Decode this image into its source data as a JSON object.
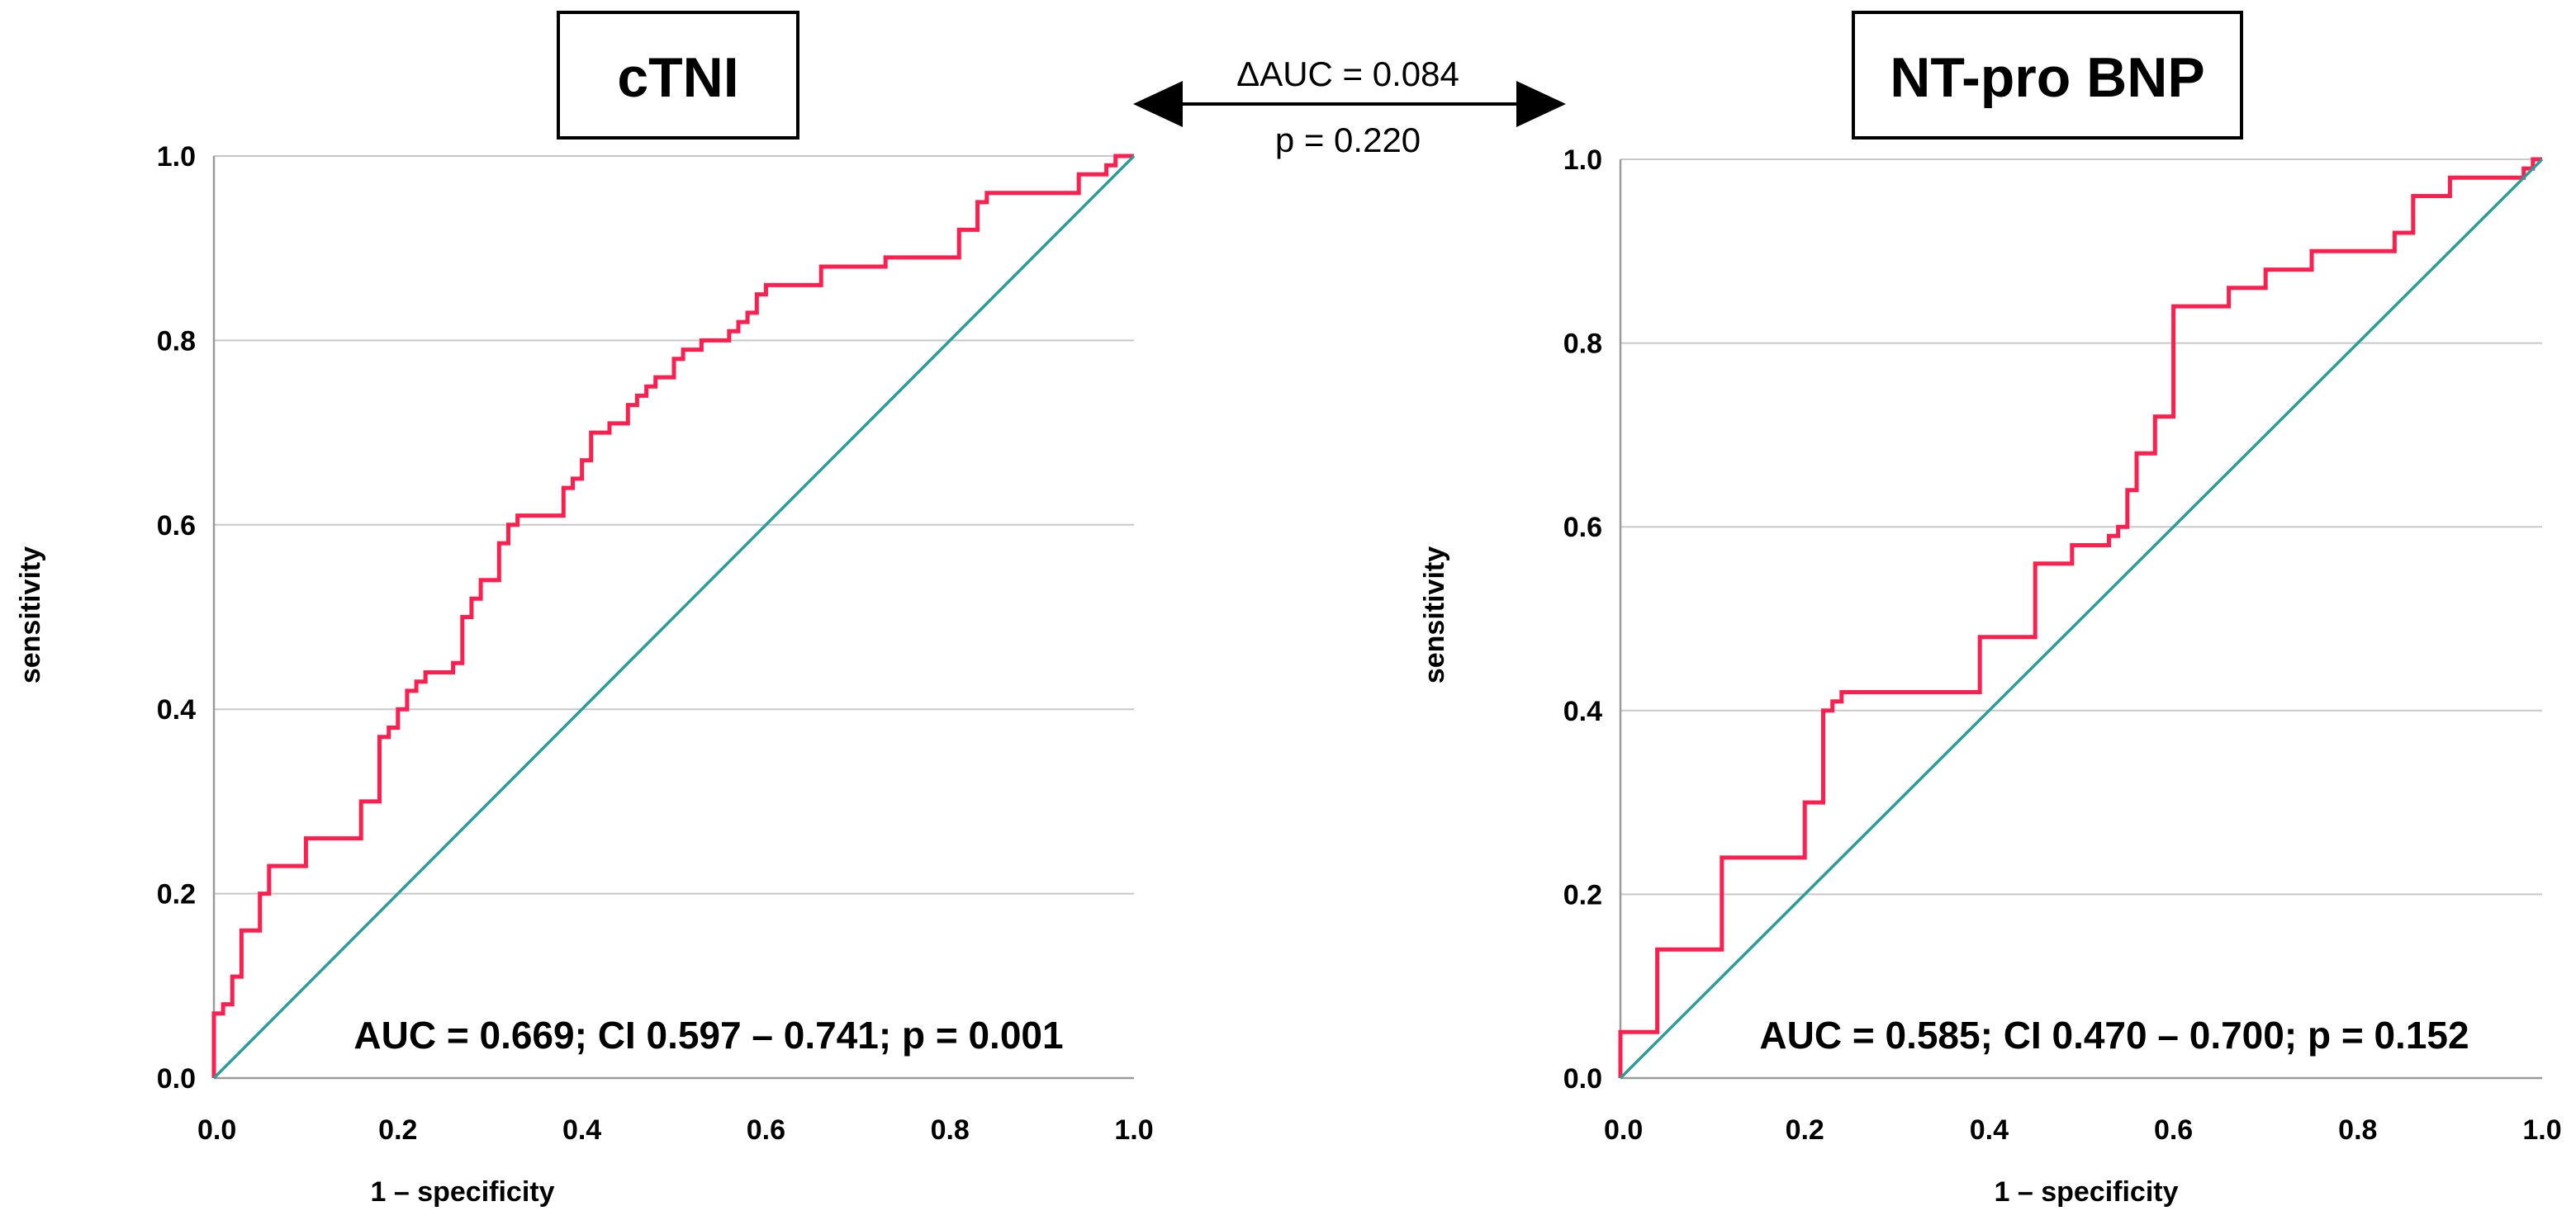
{
  "colors": {
    "roc": "#ff1f4f",
    "reference": "#2a9d9a",
    "grid": "#c8c8c8",
    "text": "#000000"
  },
  "comparison": {
    "delta_label": "ΔAUC = 0.084",
    "p_label": "p = 0.220"
  },
  "chart_data": [
    {
      "type": "line",
      "title": "cTNI",
      "xlabel": "1 – specificity",
      "ylabel": "sensitivity",
      "xlim": [
        0,
        1
      ],
      "ylim": [
        0,
        1
      ],
      "xticks": [
        "0.0",
        "0.2",
        "0.4",
        "0.6",
        "0.8",
        "1.0"
      ],
      "yticks": [
        "0.0",
        "0.2",
        "0.4",
        "0.6",
        "0.8",
        "1.0"
      ],
      "annotation": "AUC = 0.669; CI 0.597 – 0.741; p = 0.001",
      "grid": true,
      "series": [
        {
          "name": "ROC",
          "points": [
            [
              0,
              0
            ],
            [
              0,
              0.07
            ],
            [
              0.01,
              0.07
            ],
            [
              0.01,
              0.08
            ],
            [
              0.02,
              0.08
            ],
            [
              0.02,
              0.11
            ],
            [
              0.03,
              0.11
            ],
            [
              0.03,
              0.16
            ],
            [
              0.05,
              0.16
            ],
            [
              0.05,
              0.2
            ],
            [
              0.06,
              0.2
            ],
            [
              0.06,
              0.23
            ],
            [
              0.1,
              0.23
            ],
            [
              0.1,
              0.26
            ],
            [
              0.16,
              0.26
            ],
            [
              0.16,
              0.3
            ],
            [
              0.18,
              0.3
            ],
            [
              0.18,
              0.37
            ],
            [
              0.19,
              0.37
            ],
            [
              0.19,
              0.38
            ],
            [
              0.2,
              0.38
            ],
            [
              0.2,
              0.4
            ],
            [
              0.21,
              0.4
            ],
            [
              0.21,
              0.42
            ],
            [
              0.22,
              0.42
            ],
            [
              0.22,
              0.43
            ],
            [
              0.23,
              0.43
            ],
            [
              0.23,
              0.44
            ],
            [
              0.26,
              0.44
            ],
            [
              0.26,
              0.45
            ],
            [
              0.27,
              0.45
            ],
            [
              0.27,
              0.5
            ],
            [
              0.28,
              0.5
            ],
            [
              0.28,
              0.52
            ],
            [
              0.29,
              0.52
            ],
            [
              0.29,
              0.54
            ],
            [
              0.31,
              0.54
            ],
            [
              0.31,
              0.58
            ],
            [
              0.32,
              0.58
            ],
            [
              0.32,
              0.6
            ],
            [
              0.33,
              0.6
            ],
            [
              0.33,
              0.61
            ],
            [
              0.38,
              0.61
            ],
            [
              0.38,
              0.64
            ],
            [
              0.39,
              0.64
            ],
            [
              0.39,
              0.65
            ],
            [
              0.4,
              0.65
            ],
            [
              0.4,
              0.67
            ],
            [
              0.41,
              0.67
            ],
            [
              0.41,
              0.7
            ],
            [
              0.43,
              0.7
            ],
            [
              0.43,
              0.71
            ],
            [
              0.45,
              0.71
            ],
            [
              0.45,
              0.73
            ],
            [
              0.46,
              0.73
            ],
            [
              0.46,
              0.74
            ],
            [
              0.47,
              0.74
            ],
            [
              0.47,
              0.75
            ],
            [
              0.48,
              0.75
            ],
            [
              0.48,
              0.76
            ],
            [
              0.5,
              0.76
            ],
            [
              0.5,
              0.78
            ],
            [
              0.51,
              0.78
            ],
            [
              0.51,
              0.79
            ],
            [
              0.53,
              0.79
            ],
            [
              0.53,
              0.8
            ],
            [
              0.56,
              0.8
            ],
            [
              0.56,
              0.81
            ],
            [
              0.57,
              0.81
            ],
            [
              0.57,
              0.82
            ],
            [
              0.58,
              0.82
            ],
            [
              0.58,
              0.83
            ],
            [
              0.59,
              0.83
            ],
            [
              0.59,
              0.85
            ],
            [
              0.6,
              0.85
            ],
            [
              0.6,
              0.86
            ],
            [
              0.66,
              0.86
            ],
            [
              0.66,
              0.88
            ],
            [
              0.73,
              0.88
            ],
            [
              0.73,
              0.89
            ],
            [
              0.81,
              0.89
            ],
            [
              0.81,
              0.92
            ],
            [
              0.83,
              0.92
            ],
            [
              0.83,
              0.95
            ],
            [
              0.84,
              0.95
            ],
            [
              0.84,
              0.96
            ],
            [
              0.94,
              0.96
            ],
            [
              0.94,
              0.98
            ],
            [
              0.97,
              0.98
            ],
            [
              0.97,
              0.99
            ],
            [
              0.98,
              0.99
            ],
            [
              0.98,
              1.0
            ],
            [
              1.0,
              1.0
            ]
          ]
        },
        {
          "name": "Reference",
          "points": [
            [
              0,
              0
            ],
            [
              1,
              1
            ]
          ]
        }
      ]
    },
    {
      "type": "line",
      "title": "NT-pro BNP",
      "xlabel": "1 – specificity",
      "ylabel": "sensitivity",
      "xlim": [
        0,
        1
      ],
      "ylim": [
        0,
        1
      ],
      "xticks": [
        "0.0",
        "0.2",
        "0.4",
        "0.6",
        "0.8",
        "1.0"
      ],
      "yticks": [
        "0.0",
        "0.2",
        "0.4",
        "0.6",
        "0.8",
        "1.0"
      ],
      "annotation": "AUC = 0.585; CI 0.470 – 0.700; p = 0.152",
      "grid": true,
      "series": [
        {
          "name": "ROC",
          "points": [
            [
              0,
              0
            ],
            [
              0,
              0.05
            ],
            [
              0.04,
              0.05
            ],
            [
              0.04,
              0.14
            ],
            [
              0.11,
              0.14
            ],
            [
              0.11,
              0.24
            ],
            [
              0.2,
              0.24
            ],
            [
              0.2,
              0.3
            ],
            [
              0.22,
              0.3
            ],
            [
              0.22,
              0.4
            ],
            [
              0.23,
              0.4
            ],
            [
              0.23,
              0.41
            ],
            [
              0.24,
              0.41
            ],
            [
              0.24,
              0.42
            ],
            [
              0.39,
              0.42
            ],
            [
              0.39,
              0.48
            ],
            [
              0.45,
              0.48
            ],
            [
              0.45,
              0.56
            ],
            [
              0.49,
              0.56
            ],
            [
              0.49,
              0.58
            ],
            [
              0.53,
              0.58
            ],
            [
              0.53,
              0.59
            ],
            [
              0.54,
              0.59
            ],
            [
              0.54,
              0.6
            ],
            [
              0.55,
              0.6
            ],
            [
              0.55,
              0.64
            ],
            [
              0.56,
              0.64
            ],
            [
              0.56,
              0.68
            ],
            [
              0.58,
              0.68
            ],
            [
              0.58,
              0.72
            ],
            [
              0.6,
              0.72
            ],
            [
              0.6,
              0.84
            ],
            [
              0.66,
              0.84
            ],
            [
              0.66,
              0.86
            ],
            [
              0.7,
              0.86
            ],
            [
              0.7,
              0.88
            ],
            [
              0.75,
              0.88
            ],
            [
              0.75,
              0.9
            ],
            [
              0.84,
              0.9
            ],
            [
              0.84,
              0.92
            ],
            [
              0.86,
              0.92
            ],
            [
              0.86,
              0.96
            ],
            [
              0.9,
              0.96
            ],
            [
              0.9,
              0.98
            ],
            [
              0.98,
              0.98
            ],
            [
              0.98,
              0.99
            ],
            [
              0.99,
              0.99
            ],
            [
              0.99,
              1.0
            ],
            [
              1.0,
              1.0
            ]
          ]
        },
        {
          "name": "Reference",
          "points": [
            [
              0,
              0
            ],
            [
              1,
              1
            ]
          ]
        }
      ]
    }
  ]
}
